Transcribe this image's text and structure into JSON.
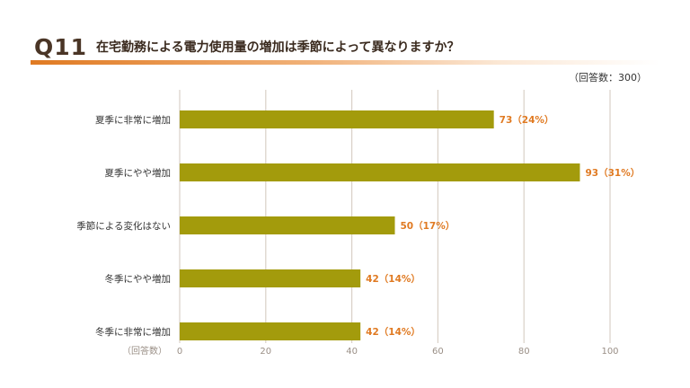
{
  "header": {
    "badge": "Q11",
    "question": "在宅勤務による電力使用量の増加は季節によって異なりますか？",
    "respondents": "（回答数：300）"
  },
  "colors": {
    "bar": "#a39b0c",
    "label": "#e07a22",
    "grid": "#d9d0c7",
    "accent": "#e07a22"
  },
  "chart_data": {
    "type": "bar",
    "orientation": "horizontal",
    "categories": [
      "夏季に非常に増加",
      "夏季にやや増加",
      "季節による変化はない",
      "冬季にやや増加",
      "冬季に非常に増加"
    ],
    "values": [
      73,
      93,
      50,
      42,
      42
    ],
    "percent_labels": [
      "73（24%）",
      "93（31%）",
      "50（17%）",
      "42（14%）",
      "42（14%）"
    ],
    "xlabel": "（回答数）",
    "xlim": [
      0,
      100
    ],
    "xticks": [
      "0",
      "20",
      "40",
      "60",
      "80",
      "100"
    ],
    "grid": true
  }
}
